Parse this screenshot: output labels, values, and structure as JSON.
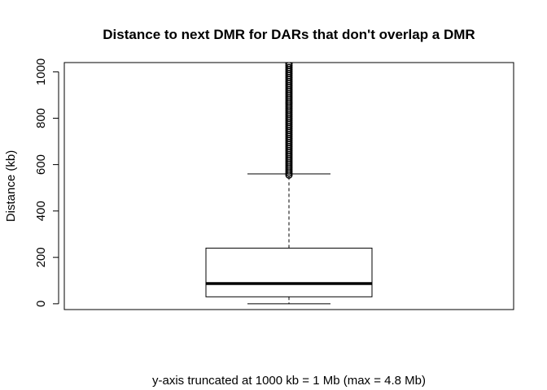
{
  "chart_data": {
    "type": "boxplot",
    "title": "Distance to next DMR for DARs that don't overlap a DMR",
    "xlabel": "y-axis truncated at 1000 kb = 1 Mb (max = 4.8 Mb)",
    "ylabel": "Distance (kb)",
    "ylim": [
      -25,
      1040
    ],
    "yticks": [
      0,
      200,
      400,
      600,
      800,
      1000
    ],
    "grid": false,
    "box": {
      "min": 0,
      "q1": 30,
      "median": 87,
      "q3": 240,
      "upper_whisker": 560
    },
    "outliers_range": [
      555,
      1040
    ],
    "colors": {
      "stroke": "#000000",
      "background": "#ffffff"
    }
  }
}
